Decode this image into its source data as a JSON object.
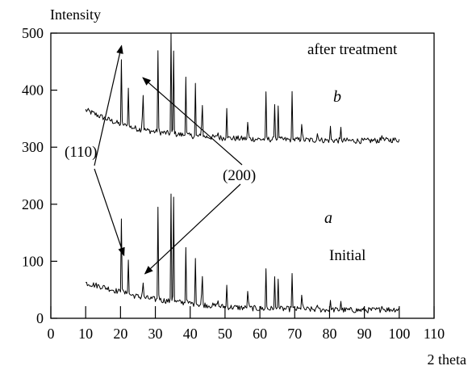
{
  "chart_data": {
    "type": "line",
    "title": "",
    "xlabel": "2 theta",
    "ylabel": "Intensity",
    "xlim": [
      0,
      110
    ],
    "ylim": [
      0,
      500
    ],
    "x_ticks": [
      0,
      10,
      20,
      30,
      40,
      50,
      60,
      70,
      80,
      90,
      100,
      110
    ],
    "y_ticks": [
      0,
      100,
      200,
      300,
      400,
      500
    ],
    "grid": false,
    "legend": "none",
    "colors": {
      "line": "#000000",
      "axis": "#000000",
      "background": "#ffffff"
    },
    "series": [
      {
        "curve_label": "b",
        "note": "after treatment",
        "baseline": [
          [
            10,
            365
          ],
          [
            15,
            352
          ],
          [
            20,
            340
          ],
          [
            25,
            332
          ],
          [
            30,
            327
          ],
          [
            40,
            320
          ],
          [
            50,
            316
          ],
          [
            60,
            314
          ],
          [
            70,
            313
          ],
          [
            80,
            312
          ],
          [
            90,
            311
          ],
          [
            100,
            313
          ]
        ],
        "peaks": [
          [
            20.3,
            478
          ],
          [
            22.2,
            418
          ],
          [
            26.4,
            462
          ],
          [
            30.8,
            500
          ],
          [
            34.5,
            500
          ],
          [
            35.2,
            500
          ],
          [
            38.8,
            445
          ],
          [
            41.5,
            412
          ],
          [
            43.4,
            438
          ],
          [
            47.9,
            335
          ],
          [
            50.5,
            368
          ],
          [
            56.6,
            378
          ],
          [
            61.8,
            415
          ],
          [
            64.3,
            388
          ],
          [
            65.3,
            385
          ],
          [
            69.2,
            416
          ],
          [
            72.1,
            372
          ],
          [
            76.6,
            337
          ],
          [
            80.2,
            342
          ],
          [
            83.2,
            340
          ],
          [
            95.1,
            330
          ]
        ]
      },
      {
        "curve_label": "a",
        "note": "Initial",
        "baseline": [
          [
            10,
            62
          ],
          [
            15,
            55
          ],
          [
            20,
            46
          ],
          [
            25,
            38
          ],
          [
            30,
            33
          ],
          [
            40,
            26
          ],
          [
            50,
            20
          ],
          [
            60,
            17
          ],
          [
            70,
            16
          ],
          [
            80,
            15
          ],
          [
            90,
            14
          ],
          [
            100,
            16
          ]
        ],
        "peaks": [
          [
            20.3,
            202
          ],
          [
            22.2,
            115
          ],
          [
            26.4,
            92
          ],
          [
            30.8,
            230
          ],
          [
            34.5,
            218
          ],
          [
            35.2,
            252
          ],
          [
            38.8,
            145
          ],
          [
            41.5,
            105
          ],
          [
            43.4,
            132
          ],
          [
            47.9,
            42
          ],
          [
            50.5,
            58
          ],
          [
            56.6,
            82
          ],
          [
            61.8,
            102
          ],
          [
            64.3,
            85
          ],
          [
            65.3,
            80
          ],
          [
            69.2,
            92
          ],
          [
            72.1,
            70
          ],
          [
            76.6,
            32
          ],
          [
            80.2,
            35
          ],
          [
            83.2,
            33
          ],
          [
            95.1,
            28
          ]
        ]
      }
    ],
    "annotations": [
      {
        "text": "(110)",
        "targets": [
          [
            20.3,
            478
          ],
          [
            21.0,
            110
          ]
        ]
      },
      {
        "text": "(200)",
        "targets": [
          [
            26.4,
            422
          ],
          [
            27.0,
            78
          ]
        ]
      }
    ],
    "labels": {
      "b_curve": "b",
      "a_curve": "a",
      "after_treatment": "after treatment",
      "initial": "Initial",
      "peak_110": "(110)",
      "peak_200": "(200)"
    }
  }
}
